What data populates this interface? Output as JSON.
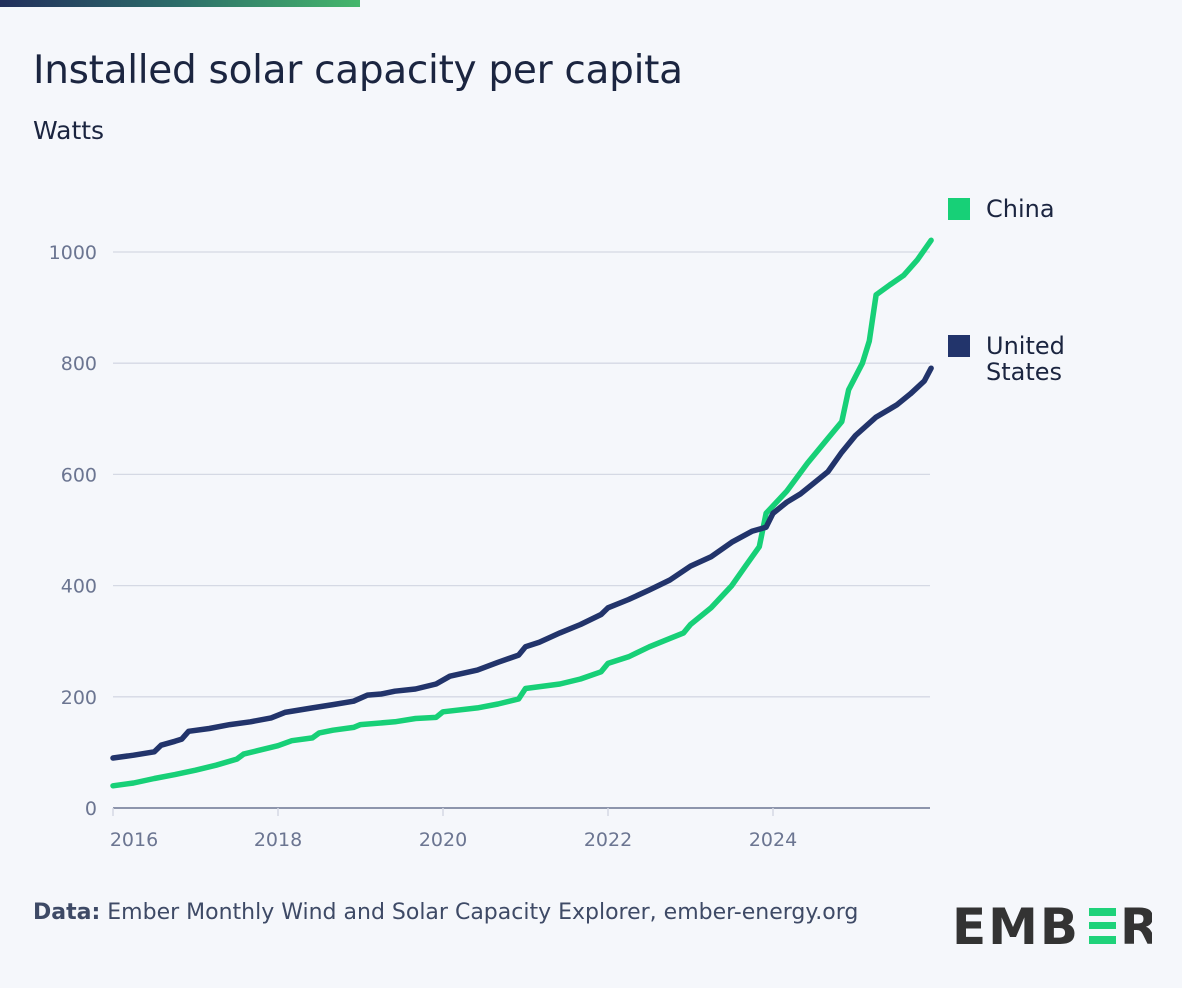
{
  "header": {
    "title": "Installed solar capacity per capita",
    "subtitle": "Watts"
  },
  "footer": {
    "source_label": "Data:",
    "source_text": "Ember Monthly Wind and Solar Capacity Explorer, ember-energy.org"
  },
  "logo": {
    "text": "EMBER",
    "colors": {
      "dark": "#333333",
      "accent": "#1fd27a"
    }
  },
  "colors": {
    "background": "#f5f7fb",
    "grid": "#d5d9e4",
    "axis": "#6b7591",
    "china": "#17d077",
    "united_states": "#22346b"
  },
  "chart_data": {
    "type": "line",
    "title": "Installed solar capacity per capita",
    "ylabel": "Watts",
    "xlabel": "",
    "ylim": [
      0,
      1000
    ],
    "yticks": [
      "0",
      "200",
      "400",
      "600",
      "800",
      "1000"
    ],
    "xticks": [
      "2016",
      "2018",
      "2020",
      "2022",
      "2024"
    ],
    "xlim": [
      "2016-01",
      "2025-12"
    ],
    "grid": "horizontal",
    "legend": "right",
    "series": [
      {
        "name": "China",
        "color": "#17d077",
        "points": [
          [
            "2016-01",
            40
          ],
          [
            "2016-04",
            45
          ],
          [
            "2016-07",
            53
          ],
          [
            "2016-10",
            60
          ],
          [
            "2017-01",
            68
          ],
          [
            "2017-04",
            77
          ],
          [
            "2017-07",
            88
          ],
          [
            "2017-08",
            97
          ],
          [
            "2017-10",
            103
          ],
          [
            "2018-01",
            112
          ],
          [
            "2018-03",
            121
          ],
          [
            "2018-06",
            126
          ],
          [
            "2018-07",
            135
          ],
          [
            "2018-09",
            140
          ],
          [
            "2018-12",
            145
          ],
          [
            "2019-01",
            150
          ],
          [
            "2019-06",
            155
          ],
          [
            "2019-09",
            161
          ],
          [
            "2019-12",
            163
          ],
          [
            "2020-01",
            173
          ],
          [
            "2020-06",
            180
          ],
          [
            "2020-09",
            187
          ],
          [
            "2020-12",
            196
          ],
          [
            "2021-01",
            215
          ],
          [
            "2021-06",
            223
          ],
          [
            "2021-09",
            232
          ],
          [
            "2021-12",
            245
          ],
          [
            "2022-01",
            260
          ],
          [
            "2022-04",
            272
          ],
          [
            "2022-07",
            290
          ],
          [
            "2022-10",
            305
          ],
          [
            "2022-12",
            315
          ],
          [
            "2023-01",
            330
          ],
          [
            "2023-04",
            360
          ],
          [
            "2023-07",
            400
          ],
          [
            "2023-09",
            435
          ],
          [
            "2023-11",
            470
          ],
          [
            "2023-12",
            530
          ],
          [
            "2024-03",
            570
          ],
          [
            "2024-06",
            620
          ],
          [
            "2024-09",
            665
          ],
          [
            "2024-11",
            695
          ],
          [
            "2024-12",
            752
          ],
          [
            "2025-02",
            800
          ],
          [
            "2025-03",
            840
          ],
          [
            "2025-04",
            923
          ],
          [
            "2025-06",
            941
          ],
          [
            "2025-08",
            958
          ],
          [
            "2025-10",
            986
          ],
          [
            "2025-12",
            1021
          ]
        ]
      },
      {
        "name": "United States",
        "color": "#22346b",
        "points": [
          [
            "2016-01",
            90
          ],
          [
            "2016-04",
            95
          ],
          [
            "2016-07",
            101
          ],
          [
            "2016-08",
            113
          ],
          [
            "2016-10",
            120
          ],
          [
            "2016-11",
            124
          ],
          [
            "2016-12",
            138
          ],
          [
            "2017-03",
            143
          ],
          [
            "2017-06",
            150
          ],
          [
            "2017-09",
            155
          ],
          [
            "2017-12",
            162
          ],
          [
            "2018-02",
            172
          ],
          [
            "2018-06",
            180
          ],
          [
            "2018-09",
            186
          ],
          [
            "2018-12",
            192
          ],
          [
            "2019-02",
            203
          ],
          [
            "2019-04",
            205
          ],
          [
            "2019-06",
            210
          ],
          [
            "2019-09",
            214
          ],
          [
            "2019-12",
            223
          ],
          [
            "2020-02",
            237
          ],
          [
            "2020-06",
            248
          ],
          [
            "2020-09",
            262
          ],
          [
            "2020-12",
            275
          ],
          [
            "2021-01",
            290
          ],
          [
            "2021-03",
            298
          ],
          [
            "2021-06",
            315
          ],
          [
            "2021-09",
            330
          ],
          [
            "2021-12",
            348
          ],
          [
            "2022-01",
            360
          ],
          [
            "2022-04",
            375
          ],
          [
            "2022-07",
            392
          ],
          [
            "2022-10",
            410
          ],
          [
            "2023-01",
            435
          ],
          [
            "2023-04",
            452
          ],
          [
            "2023-07",
            478
          ],
          [
            "2023-10",
            498
          ],
          [
            "2023-12",
            505
          ],
          [
            "2024-01",
            530
          ],
          [
            "2024-03",
            550
          ],
          [
            "2024-05",
            565
          ],
          [
            "2024-07",
            585
          ],
          [
            "2024-09",
            605
          ],
          [
            "2024-11",
            640
          ],
          [
            "2025-01",
            670
          ],
          [
            "2025-04",
            703
          ],
          [
            "2025-07",
            725
          ],
          [
            "2025-09",
            745
          ],
          [
            "2025-11",
            768
          ],
          [
            "2025-12",
            791
          ]
        ]
      }
    ]
  }
}
